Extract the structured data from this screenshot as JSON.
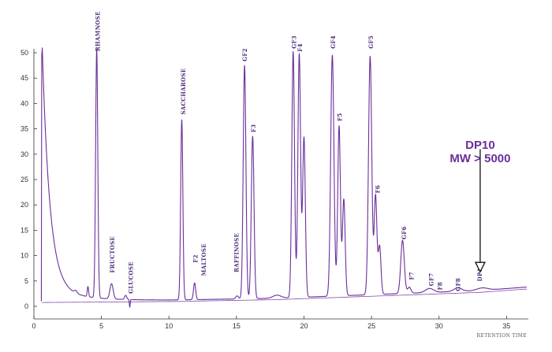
{
  "chart_data": {
    "type": "line",
    "title": "",
    "xlabel": "RETENTION TIME",
    "ylabel": "",
    "xlim": [
      0,
      36.5
    ],
    "ylim": [
      -1,
      52
    ],
    "x_ticks": [
      0,
      5,
      10,
      15,
      20,
      25,
      30,
      35
    ],
    "y_ticks": [
      0,
      5,
      10,
      15,
      20,
      25,
      30,
      35,
      40,
      45,
      50
    ],
    "grid": false,
    "line_color": "#6a2f9a",
    "series": [
      {
        "baseline": 1.0,
        "drift": [
          [
            0,
            1.0
          ],
          [
            10,
            1.2
          ],
          [
            18,
            1.6
          ],
          [
            26,
            2.4
          ],
          [
            33,
            3.1
          ],
          [
            36.5,
            3.8
          ]
        ],
        "solvent_front": {
          "x": 0.6,
          "height": 49.5
        },
        "peaks": [
          {
            "x": 3.1,
            "h": 0.5,
            "w": 0.1
          },
          {
            "x": 4.0,
            "h": 2.0,
            "w": 0.05
          },
          {
            "x": 4.65,
            "h": 49.0,
            "w": 0.08
          },
          {
            "x": 5.75,
            "h": 3.0,
            "w": 0.12
          },
          {
            "x": 6.8,
            "h": 0.8,
            "w": 0.08
          },
          {
            "x": 7.1,
            "h": -1.5,
            "w": 0.03
          },
          {
            "x": 10.95,
            "h": 35.5,
            "w": 0.08
          },
          {
            "x": 11.9,
            "h": 3.3,
            "w": 0.08
          },
          {
            "x": 15.05,
            "h": 0.6,
            "w": 0.1
          },
          {
            "x": 15.6,
            "h": 46.0,
            "w": 0.1
          },
          {
            "x": 16.2,
            "h": 32.0,
            "w": 0.1
          },
          {
            "x": 18.0,
            "h": 0.6,
            "w": 0.3
          },
          {
            "x": 19.2,
            "h": 48.5,
            "w": 0.1
          },
          {
            "x": 19.65,
            "h": 48.0,
            "w": 0.1
          },
          {
            "x": 20.0,
            "h": 31.5,
            "w": 0.1
          },
          {
            "x": 22.1,
            "h": 47.5,
            "w": 0.12
          },
          {
            "x": 22.6,
            "h": 33.5,
            "w": 0.1
          },
          {
            "x": 22.95,
            "h": 19.0,
            "w": 0.1
          },
          {
            "x": 24.9,
            "h": 47.0,
            "w": 0.12
          },
          {
            "x": 25.3,
            "h": 19.5,
            "w": 0.1
          },
          {
            "x": 25.6,
            "h": 9.5,
            "w": 0.1
          },
          {
            "x": 27.3,
            "h": 10.5,
            "w": 0.13
          },
          {
            "x": 27.8,
            "h": 1.2,
            "w": 0.12
          },
          {
            "x": 29.3,
            "h": 0.8,
            "w": 0.3
          },
          {
            "x": 31.4,
            "h": 0.7,
            "w": 0.3
          },
          {
            "x": 33.2,
            "h": 0.5,
            "w": 0.4
          }
        ]
      }
    ],
    "annotations": [
      {
        "text": "RHAMNOSE",
        "x": 4.75,
        "y": 50.3
      },
      {
        "text": "FRUCTOSE",
        "x": 5.85,
        "y": 6.6
      },
      {
        "text": "GLUCOSE",
        "x": 7.2,
        "y": 2.5
      },
      {
        "text": "SACCHAROSE",
        "x": 11.1,
        "y": 37.8
      },
      {
        "text": "F2",
        "x": 12.0,
        "y": 8.6
      },
      {
        "text": "MALTOSE",
        "x": 12.6,
        "y": 6.0
      },
      {
        "text": "RAFFINOSE",
        "x": 15.05,
        "y": 6.7
      },
      {
        "text": "GF2",
        "x": 15.65,
        "y": 48.3
      },
      {
        "text": "F3",
        "x": 16.3,
        "y": 34.3
      },
      {
        "text": "GF3",
        "x": 19.3,
        "y": 50.8
      },
      {
        "text": "F4",
        "x": 19.75,
        "y": 50.2
      },
      {
        "text": "GF4",
        "x": 22.2,
        "y": 50.8
      },
      {
        "text": "F5",
        "x": 22.7,
        "y": 36.5
      },
      {
        "text": "GF5",
        "x": 25.0,
        "y": 50.8
      },
      {
        "text": "F6",
        "x": 25.5,
        "y": 22.3
      },
      {
        "text": "GF6",
        "x": 27.45,
        "y": 13.2
      },
      {
        "text": "F7",
        "x": 28.0,
        "y": 5.2
      },
      {
        "text": "GF7",
        "x": 29.45,
        "y": 4.0
      },
      {
        "text": "F8",
        "x": 30.1,
        "y": 3.2
      },
      {
        "text": "GF8",
        "x": 31.45,
        "y": 3.0
      },
      {
        "text": "DP10",
        "x": 33.05,
        "y": 4.9
      }
    ],
    "callout": {
      "lines": [
        "DP10",
        "MW > 5000"
      ],
      "arrow_from": [
        33.05,
        31
      ],
      "arrow_to": [
        33.05,
        6.8
      ]
    }
  }
}
